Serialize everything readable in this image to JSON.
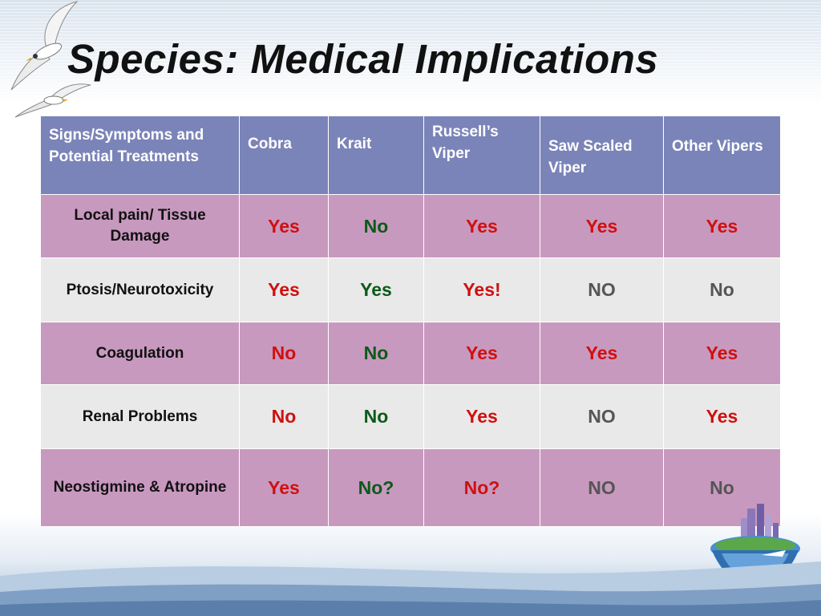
{
  "slide": {
    "title": "Species: Medical Implications"
  },
  "colors": {
    "header_bg": "#7b84b8",
    "row_pink": "#c899bf",
    "row_gray": "#e9e9e9",
    "yes_red": "#d01010",
    "no_green": "#0c5a18",
    "no_gray": "#555555"
  },
  "table": {
    "headers": [
      "Signs/Symptoms and Potential Treatments",
      "Cobra",
      "Krait",
      "Russell’s Viper",
      "Saw Scaled Viper",
      "Other Vipers"
    ],
    "rows": [
      {
        "label": "Local pain/ Tissue Damage",
        "cells": [
          {
            "text": "Yes",
            "tone": "red"
          },
          {
            "text": "No",
            "tone": "green"
          },
          {
            "text": "Yes",
            "tone": "red"
          },
          {
            "text": "Yes",
            "tone": "red"
          },
          {
            "text": "Yes",
            "tone": "red"
          }
        ]
      },
      {
        "label": "Ptosis/Neurotoxicity",
        "cells": [
          {
            "text": "Yes",
            "tone": "red"
          },
          {
            "text": "Yes",
            "tone": "green"
          },
          {
            "text": "Yes!",
            "tone": "red"
          },
          {
            "text": "NO",
            "tone": "gray"
          },
          {
            "text": "No",
            "tone": "gray"
          }
        ]
      },
      {
        "label": "Coagulation",
        "cells": [
          {
            "text": "No",
            "tone": "red"
          },
          {
            "text": "No",
            "tone": "green"
          },
          {
            "text": "Yes",
            "tone": "red"
          },
          {
            "text": "Yes",
            "tone": "red"
          },
          {
            "text": "Yes",
            "tone": "red"
          }
        ]
      },
      {
        "label": "Renal Problems",
        "cells": [
          {
            "text": "No",
            "tone": "red"
          },
          {
            "text": "No",
            "tone": "green"
          },
          {
            "text": "Yes",
            "tone": "red"
          },
          {
            "text": "NO",
            "tone": "gray"
          },
          {
            "text": "Yes",
            "tone": "red"
          }
        ]
      },
      {
        "label": "Neostigmine & Atropine",
        "cells": [
          {
            "text": "Yes",
            "tone": "red"
          },
          {
            "text": "No?",
            "tone": "green"
          },
          {
            "text": "No?",
            "tone": "red"
          },
          {
            "text": "NO",
            "tone": "gray"
          },
          {
            "text": "No",
            "tone": "gray"
          }
        ]
      }
    ]
  }
}
